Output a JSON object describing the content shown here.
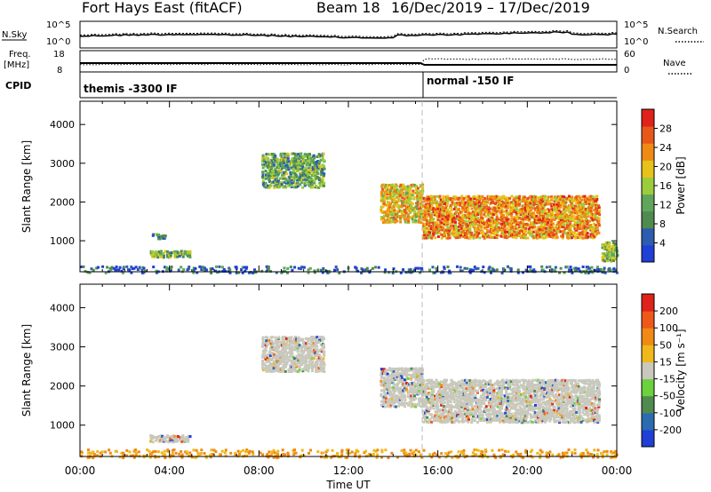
{
  "header": {
    "station": "Fort Hays East (fitACF)",
    "beam": "Beam 18",
    "daterange": "16/Dec/2019 – 17/Dec/2019"
  },
  "strip": {
    "nsky_label": "N.Sky",
    "nsearch_label": "N.Search",
    "freq_label": "Freq.",
    "freq_unit": "[MHz]",
    "nave_label": "Nave",
    "cpid_label": "CPID",
    "left_ticks_top": [
      "10^5",
      "10^0"
    ],
    "right_ticks_top": [
      "10^5",
      "10^0"
    ],
    "left_ticks_freq": [
      "18",
      "8"
    ],
    "right_ticks_nave": [
      "60",
      "0"
    ],
    "cpid_segments": [
      {
        "label": "themis -3300 IF",
        "start_hour": 0
      },
      {
        "label": "normal -150 IF",
        "start_hour": 15.3
      }
    ]
  },
  "colors": {
    "power": [
      "#1f3fd6",
      "#2d5cb0",
      "#4f8a4e",
      "#5fa65a",
      "#9ccc3c",
      "#e6c21a",
      "#f08a14",
      "#e8571a",
      "#e0221a"
    ],
    "velocity": [
      "#1f3fd6",
      "#2d6bb0",
      "#4f8a4e",
      "#6bd13c",
      "#c8c8bc",
      "#f0b81a",
      "#f08a14",
      "#f0581a",
      "#e0221a"
    ]
  },
  "chart_data": [
    {
      "type": "heatmap",
      "title": "Power",
      "xlabel": "",
      "ylabel": "Slant Range [km]",
      "xlim": [
        0,
        24
      ],
      "ylim": [
        200,
        4600
      ],
      "yticks": [
        1000,
        2000,
        3000,
        4000
      ],
      "colorbar_label": "Power [dB]",
      "colorbar_ticks": [
        4,
        8,
        12,
        16,
        20,
        24,
        28
      ],
      "clim": [
        0,
        32
      ],
      "regions": [
        {
          "t0": 8.1,
          "t1": 10.9,
          "r0": 2400,
          "r1": 3300,
          "level": 12
        },
        {
          "t0": 13.4,
          "t1": 15.3,
          "r0": 1500,
          "r1": 2500,
          "level": 20
        },
        {
          "t0": 15.3,
          "t1": 23.2,
          "r0": 1100,
          "r1": 2200,
          "level": 23
        },
        {
          "t0": 3.1,
          "t1": 4.9,
          "r0": 600,
          "r1": 780,
          "level": 14
        },
        {
          "t0": 3.2,
          "t1": 3.8,
          "r0": 1080,
          "r1": 1220,
          "level": 8
        },
        {
          "t0": 23.3,
          "t1": 24.0,
          "r0": 500,
          "r1": 1000,
          "level": 14
        },
        {
          "t0": 0.0,
          "t1": 24.0,
          "r0": 200,
          "r1": 380,
          "level": 6
        }
      ]
    },
    {
      "type": "heatmap",
      "title": "Velocity",
      "xlabel": "Time UT",
      "ylabel": "Slant Range [km]",
      "xlim": [
        0,
        24
      ],
      "ylim": [
        200,
        4600
      ],
      "xticks": [
        "00:00",
        "04:00",
        "08:00",
        "12:00",
        "16:00",
        "20:00",
        "00:00"
      ],
      "yticks": [
        1000,
        2000,
        3000,
        4000
      ],
      "colorbar_label": "Velocity [m s⁻¹]",
      "colorbar_ticks": [
        200,
        100,
        50,
        15,
        -15,
        -50,
        -100,
        -200
      ],
      "regions": [
        {
          "t0": 8.1,
          "t1": 10.9,
          "r0": 2400,
          "r1": 3300,
          "level": 4
        },
        {
          "t0": 13.4,
          "t1": 15.3,
          "r0": 1500,
          "r1": 2500,
          "level": 4
        },
        {
          "t0": 15.3,
          "t1": 23.2,
          "r0": 1100,
          "r1": 2200,
          "level": 4
        },
        {
          "t0": 3.1,
          "t1": 4.9,
          "r0": 600,
          "r1": 780,
          "level": 3
        },
        {
          "t0": 0.0,
          "t1": 24.0,
          "r0": 200,
          "r1": 420,
          "level": 6
        }
      ]
    }
  ]
}
